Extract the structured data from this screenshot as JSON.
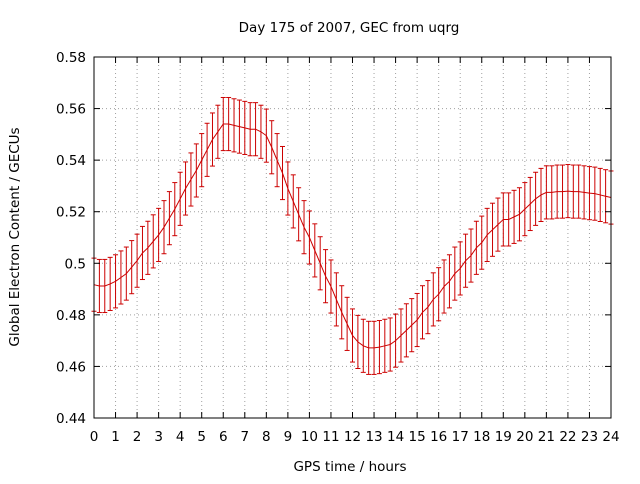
{
  "chart_data": {
    "type": "line",
    "title": "Day 175 of 2007, GEC from uqrg",
    "xlabel": "GPS time / hours",
    "ylabel": "Global Electron Content / GECUs",
    "xlim": [
      0,
      24
    ],
    "ylim": [
      0.44,
      0.58
    ],
    "grid": true,
    "error_bars": true,
    "series_color": "#cc0000",
    "x_tick_labels": [
      "0",
      "1",
      "2",
      "3",
      "4",
      "5",
      "6",
      "7",
      "8",
      "9",
      "10",
      "11",
      "12",
      "13",
      "14",
      "15",
      "16",
      "17",
      "18",
      "19",
      "20",
      "21",
      "22",
      "23",
      "24"
    ],
    "y_tick_labels": [
      "0.44",
      "0.46",
      "0.48",
      "0.5",
      "0.52",
      "0.54",
      "0.56",
      "0.58"
    ],
    "series": [
      {
        "name": "GEC",
        "x": [
          0,
          0.25,
          0.5,
          0.75,
          1,
          1.25,
          1.5,
          1.75,
          2,
          2.25,
          2.5,
          2.75,
          3,
          3.25,
          3.5,
          3.75,
          4,
          4.25,
          4.5,
          4.75,
          5,
          5.25,
          5.5,
          5.75,
          6,
          6.25,
          6.5,
          6.75,
          7,
          7.25,
          7.5,
          7.75,
          8,
          8.25,
          8.5,
          8.75,
          9,
          9.25,
          9.5,
          9.75,
          10,
          10.25,
          10.5,
          10.75,
          11,
          11.25,
          11.5,
          11.75,
          12,
          12.25,
          12.5,
          12.75,
          13,
          13.25,
          13.5,
          13.75,
          14,
          14.25,
          14.5,
          14.75,
          15,
          15.25,
          15.5,
          15.75,
          16,
          16.25,
          16.5,
          16.75,
          17,
          17.25,
          17.5,
          17.75,
          18,
          18.25,
          18.5,
          18.75,
          19,
          19.25,
          19.5,
          19.75,
          20,
          20.25,
          20.5,
          20.75,
          21,
          21.25,
          21.5,
          21.75,
          22,
          22.25,
          22.5,
          22.75,
          23,
          23.25,
          23.5,
          23.75,
          24
        ],
        "y": [
          0.4917,
          0.4912,
          0.4912,
          0.492,
          0.493,
          0.4945,
          0.496,
          0.4985,
          0.501,
          0.504,
          0.506,
          0.5085,
          0.511,
          0.514,
          0.5175,
          0.521,
          0.525,
          0.529,
          0.5325,
          0.536,
          0.54,
          0.544,
          0.548,
          0.551,
          0.554,
          0.554,
          0.5535,
          0.553,
          0.5525,
          0.552,
          0.552,
          0.551,
          0.5495,
          0.545,
          0.54,
          0.535,
          0.529,
          0.524,
          0.519,
          0.514,
          0.51,
          0.505,
          0.5,
          0.495,
          0.491,
          0.486,
          0.481,
          0.4765,
          0.472,
          0.4695,
          0.468,
          0.4672,
          0.4672,
          0.4675,
          0.468,
          0.4685,
          0.47,
          0.472,
          0.474,
          0.476,
          0.478,
          0.481,
          0.483,
          0.486,
          0.488,
          0.491,
          0.493,
          0.496,
          0.498,
          0.501,
          0.503,
          0.506,
          0.508,
          0.511,
          0.513,
          0.515,
          0.517,
          0.517,
          0.518,
          0.519,
          0.521,
          0.523,
          0.525,
          0.5265,
          0.5275,
          0.5275,
          0.5278,
          0.5278,
          0.528,
          0.5278,
          0.5278,
          0.5275,
          0.5272,
          0.527,
          0.5265,
          0.526,
          0.5255
        ],
        "error": 0.0103
      }
    ]
  }
}
